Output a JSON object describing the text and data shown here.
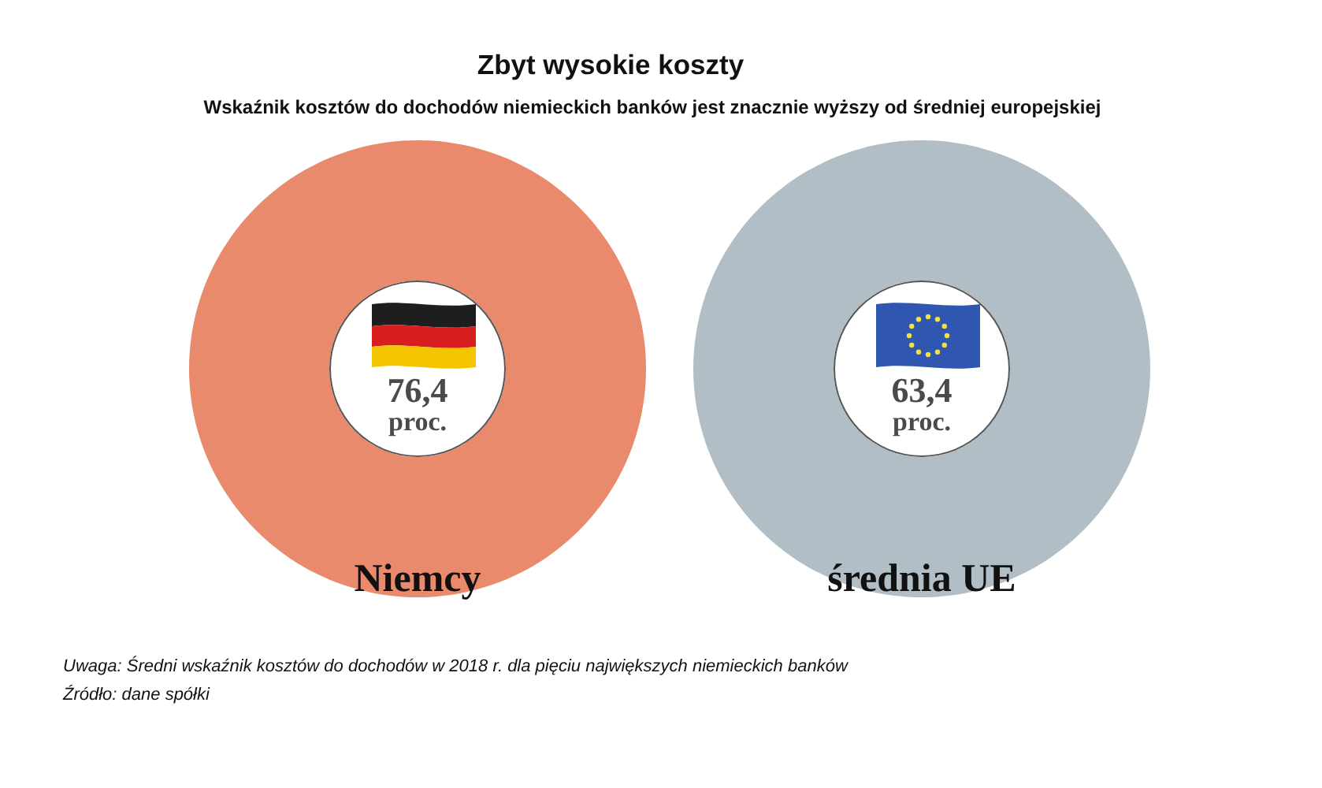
{
  "chart_data": {
    "type": "other",
    "title": "Zbyt wysokie koszty",
    "subtitle": "Wskaźnik kosztów do dochodów niemieckich banków jest znacznie wyższy od średniej europejskiej",
    "categories": [
      "Niemcy",
      "średnia UE"
    ],
    "values": [
      76.4,
      63.4
    ],
    "value_labels": [
      "76,4 proc.",
      "63,4 proc."
    ],
    "colors": [
      "#e98a6c",
      "#b2bec5"
    ],
    "annotations": [
      "Uwaga: Średni wskaźnik kosztów do dochodów w 2018 r. dla pięciu największych niemieckich banków",
      "Źródło: dane spółki"
    ]
  }
}
